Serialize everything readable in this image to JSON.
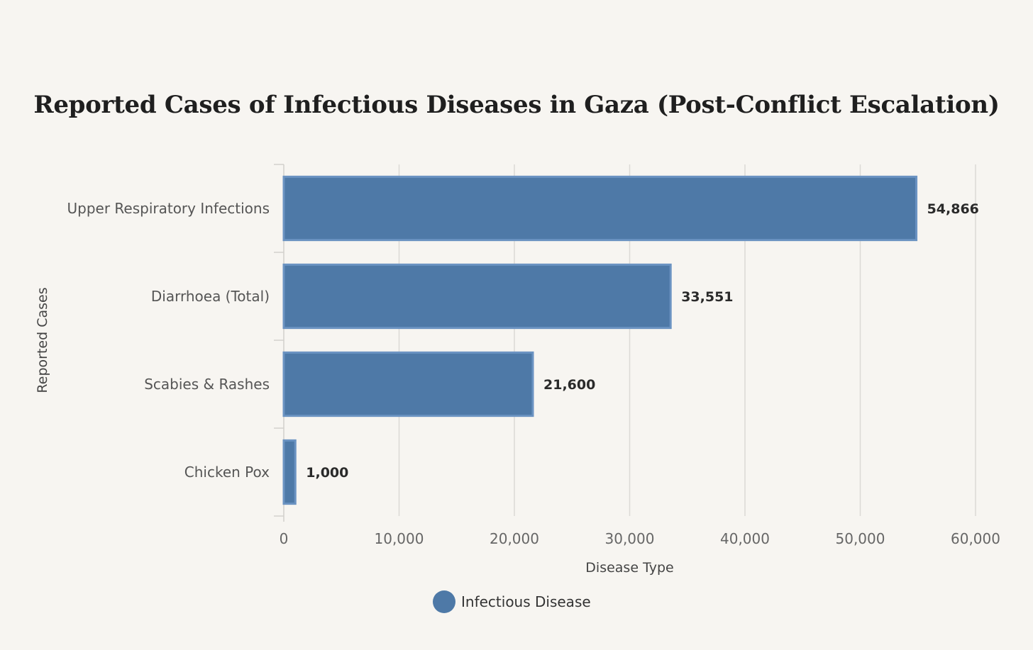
{
  "chart_data": {
    "type": "bar",
    "orientation": "horizontal",
    "title": "Reported Cases of Infectious Diseases in Gaza (Post-Conflict Escalation)",
    "categories": [
      "Upper Respiratory Infections",
      "Diarrhoea (Total)",
      "Scabies & Rashes",
      "Chicken Pox"
    ],
    "values": [
      54866,
      33551,
      21600,
      1000
    ],
    "data_labels": [
      "54,866",
      "33,551",
      "21,600",
      "1,000"
    ],
    "xlabel": "Disease Type",
    "ylabel": "Reported Cases",
    "xlim": [
      0,
      60000
    ],
    "x_ticks": [
      0,
      10000,
      20000,
      30000,
      40000,
      50000,
      60000
    ],
    "x_tick_labels": [
      "0",
      "10,000",
      "20,000",
      "30,000",
      "40,000",
      "50,000",
      "60,000"
    ],
    "grid": true,
    "legend": {
      "placement": "bottom",
      "entries": [
        "Infectious Disease"
      ]
    },
    "series_color": "#4e79a7",
    "series_edge_color": "#6b93c2"
  }
}
